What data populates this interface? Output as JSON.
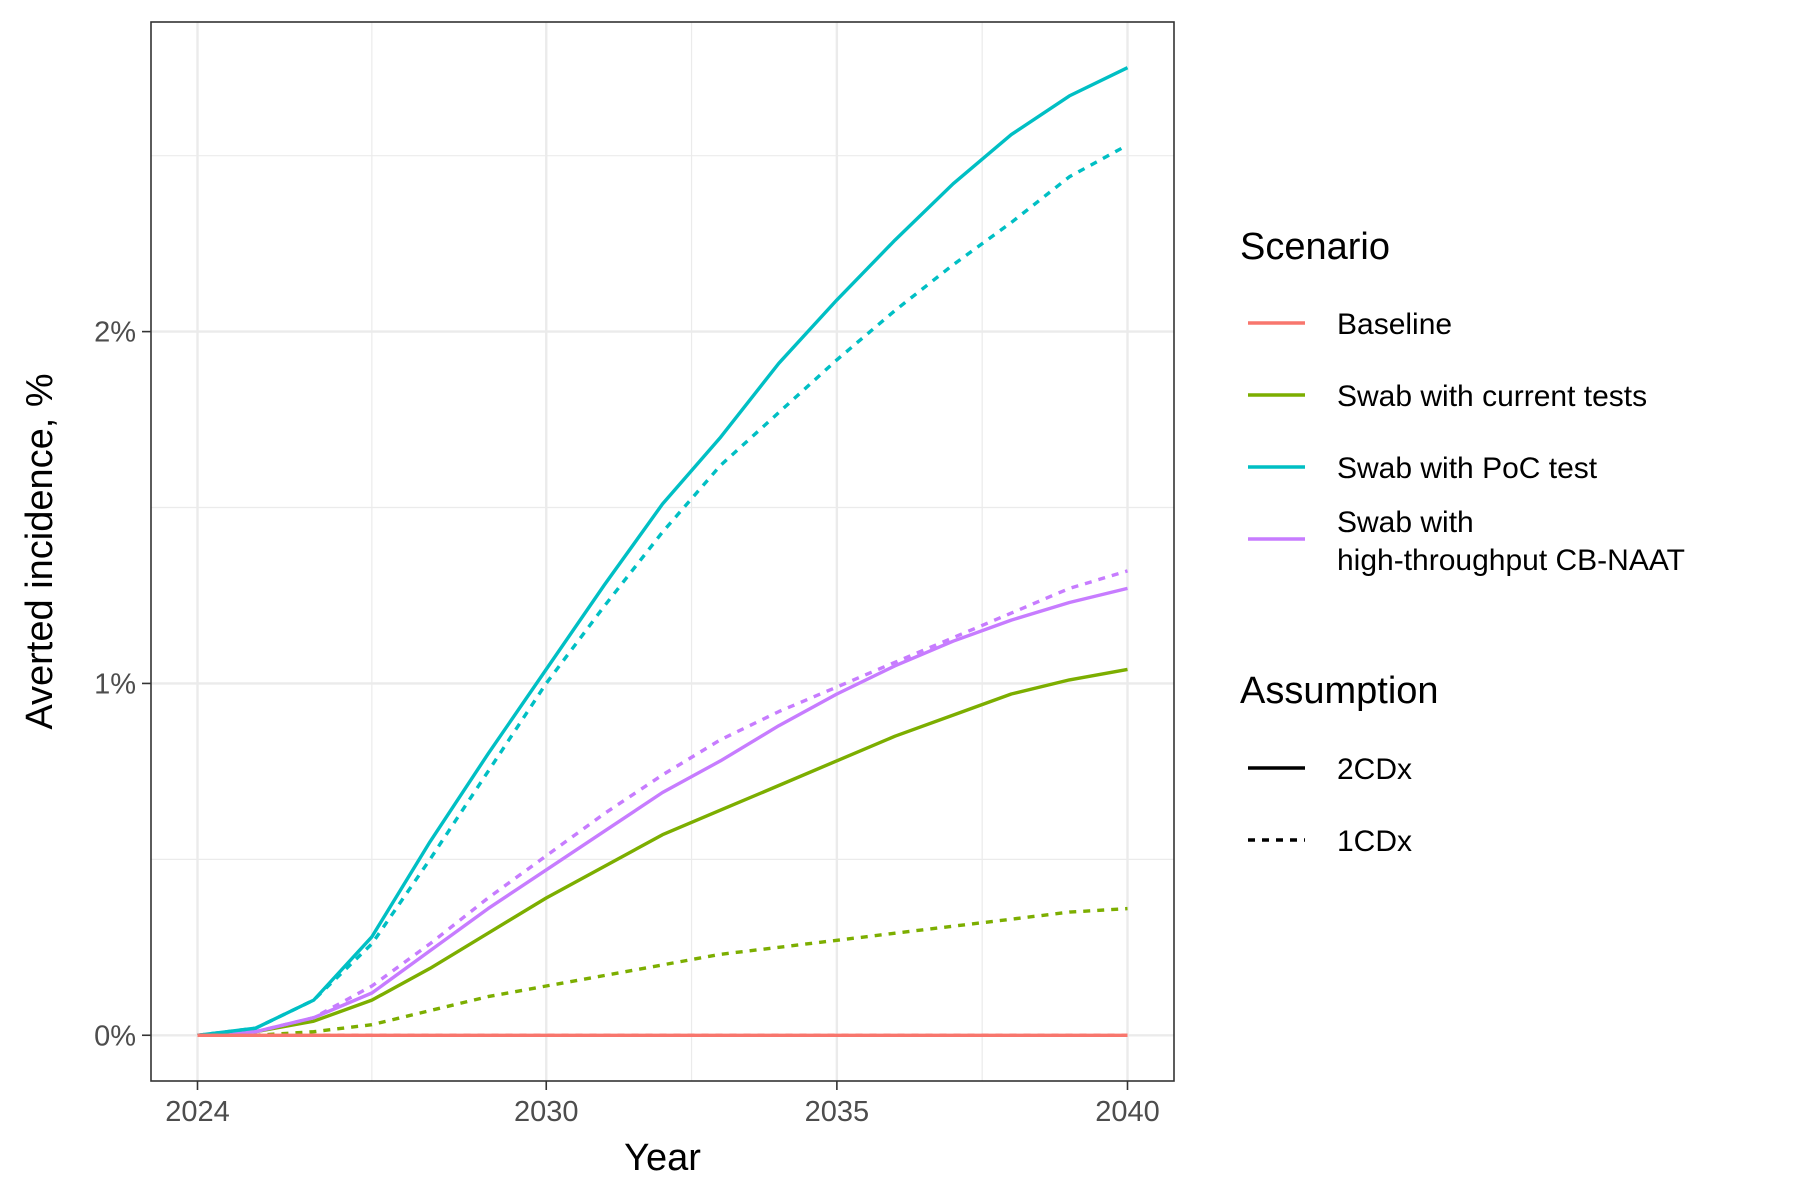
{
  "chart_data": {
    "type": "line",
    "xlabel": "Year",
    "ylabel": "Averted incidence, %",
    "x_ticks": [
      2024,
      2030,
      2035,
      2040
    ],
    "y_ticks": [
      0,
      1,
      2
    ],
    "y_tick_labels": [
      "0%",
      "1%",
      "2%"
    ],
    "xlim": [
      2023.2,
      2040.8
    ],
    "ylim": [
      -0.13,
      2.88
    ],
    "grid": true,
    "legend_position": "right",
    "x": [
      2024,
      2025,
      2026,
      2027,
      2028,
      2029,
      2030,
      2031,
      2032,
      2033,
      2034,
      2035,
      2036,
      2037,
      2038,
      2039,
      2040
    ],
    "scenario_legend": {
      "title": "Scenario",
      "items": [
        {
          "key": "baseline",
          "label_lines": [
            "Baseline"
          ],
          "color": "#F8766D"
        },
        {
          "key": "current",
          "label_lines": [
            "Swab with current tests"
          ],
          "color": "#7CAE00"
        },
        {
          "key": "poc",
          "label_lines": [
            "Swab with PoC test"
          ],
          "color": "#00BFC4"
        },
        {
          "key": "cbnaat",
          "label_lines": [
            "Swab with",
            "high-throughput CB-NAAT"
          ],
          "color": "#C77CFF"
        }
      ]
    },
    "assumption_legend": {
      "title": "Assumption",
      "items": [
        {
          "key": "2cdx",
          "label": "2CDx",
          "dash": "solid"
        },
        {
          "key": "1cdx",
          "label": "1CDx",
          "dash": "dashed"
        }
      ]
    },
    "series": [
      {
        "scenario": "baseline",
        "assumption": "2CDx",
        "values": [
          0,
          0,
          0,
          0,
          0,
          0,
          0,
          0,
          0,
          0,
          0,
          0,
          0,
          0,
          0,
          0,
          0
        ]
      },
      {
        "scenario": "baseline",
        "assumption": "1CDx",
        "values": [
          0,
          0,
          0,
          0,
          0,
          0,
          0,
          0,
          0,
          0,
          0,
          0,
          0,
          0,
          0,
          0,
          0
        ]
      },
      {
        "scenario": "current",
        "assumption": "2CDx",
        "values": [
          0,
          0.01,
          0.04,
          0.1,
          0.19,
          0.29,
          0.39,
          0.48,
          0.57,
          0.64,
          0.71,
          0.78,
          0.85,
          0.91,
          0.97,
          1.01,
          1.04
        ]
      },
      {
        "scenario": "current",
        "assumption": "1CDx",
        "values": [
          0,
          0,
          0.01,
          0.03,
          0.07,
          0.11,
          0.14,
          0.17,
          0.2,
          0.23,
          0.25,
          0.27,
          0.29,
          0.31,
          0.33,
          0.35,
          0.36
        ]
      },
      {
        "scenario": "poc",
        "assumption": "2CDx",
        "values": [
          0,
          0.02,
          0.1,
          0.28,
          0.55,
          0.8,
          1.04,
          1.28,
          1.51,
          1.7,
          1.91,
          2.09,
          2.26,
          2.42,
          2.56,
          2.67,
          2.75
        ]
      },
      {
        "scenario": "poc",
        "assumption": "1CDx",
        "values": [
          0,
          0.02,
          0.1,
          0.26,
          0.5,
          0.75,
          1.0,
          1.22,
          1.43,
          1.62,
          1.77,
          1.92,
          2.06,
          2.19,
          2.31,
          2.44,
          2.53
        ]
      },
      {
        "scenario": "cbnaat",
        "assumption": "2CDx",
        "values": [
          0,
          0.01,
          0.05,
          0.12,
          0.24,
          0.36,
          0.47,
          0.58,
          0.69,
          0.78,
          0.88,
          0.97,
          1.05,
          1.12,
          1.18,
          1.23,
          1.27
        ]
      },
      {
        "scenario": "cbnaat",
        "assumption": "1CDx",
        "values": [
          0,
          0.01,
          0.05,
          0.14,
          0.26,
          0.39,
          0.51,
          0.63,
          0.74,
          0.84,
          0.92,
          0.99,
          1.06,
          1.13,
          1.2,
          1.27,
          1.32
        ]
      }
    ]
  }
}
